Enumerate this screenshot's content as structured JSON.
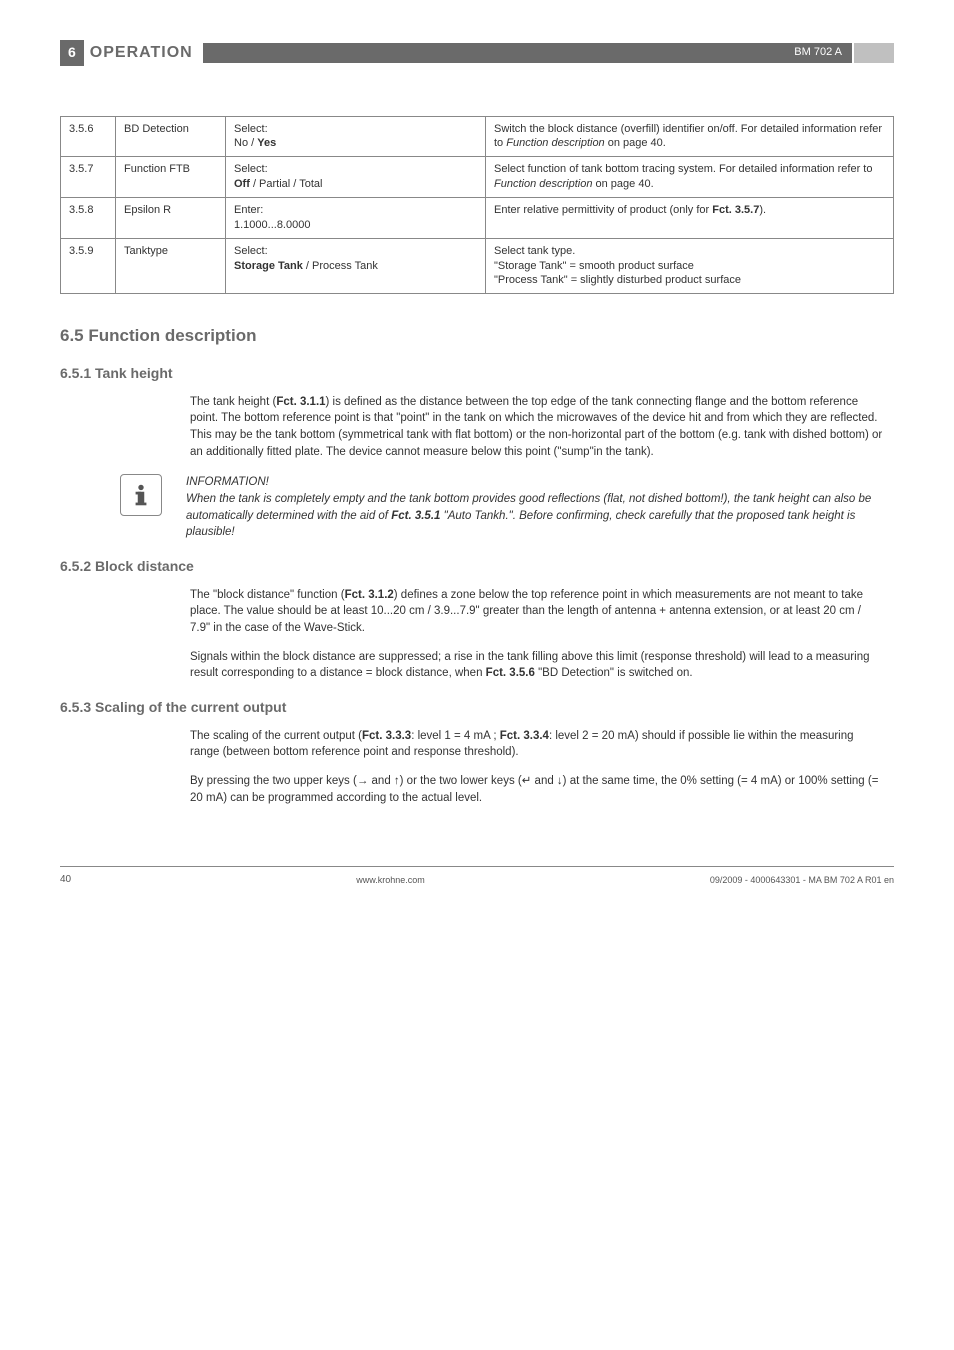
{
  "header": {
    "num": "6",
    "title": "OPERATION",
    "model": "BM 702 A"
  },
  "table": {
    "rows": [
      {
        "c1": "3.5.6",
        "c2": "BD Detection",
        "c3": "Select:<br>No / <b>Yes</b>",
        "c4": "Switch the block distance (overfill) identifier on/off. For detailed information refer to <span class=\"it\">Function description</span> on page 40."
      },
      {
        "c1": "3.5.7",
        "c2": "Function FTB",
        "c3": "Select:<br><b>Off</b> / Partial / Total",
        "c4": "Select function of tank bottom tracing system. For detailed information  refer to <span class=\"it\">Function description</span> on page 40."
      },
      {
        "c1": "3.5.8",
        "c2": "Epsilon R",
        "c3": "Enter:<br>1.1000...8.0000",
        "c4": "Enter relative permittivity of product (only for <b>Fct. 3.5.7</b>)."
      },
      {
        "c1": "3.5.9",
        "c2": "Tanktype",
        "c3": "Select:<br><b>Storage Tank</b> / Process Tank",
        "c4": "Select tank type.<br>\"Storage Tank\" = smooth product surface<br>\"Process Tank\" = slightly disturbed product surface"
      }
    ]
  },
  "sections": {
    "s65": "6.5  Function description",
    "s651": {
      "title": "6.5.1  Tank height",
      "body": "The tank height (<b>Fct. 3.1.1</b>) is defined as the distance between the top edge of the tank connecting flange and the bottom reference point. The bottom reference point is that \"point\" in the tank on which the microwaves of the device hit and from which they are reflected. This may be the tank bottom (symmetrical tank with flat bottom) or the non-horizontal part of the bottom (e.g. tank with dished bottom) or an additionally fitted plate. The device cannot measure below this point (\"sump\"in the tank)."
    },
    "info": {
      "head": "INFORMATION!",
      "body": "When the tank is completely empty and the tank bottom provides good reflections (flat, not dished bottom!), the tank height can also be automatically determined with the aid of <b>Fct. 3.5.1</b> \"Auto Tankh.\". Before confirming, check carefully that the proposed tank height is plausible!"
    },
    "s652": {
      "title": "6.5.2  Block distance",
      "p1": "The \"block distance\" function (<b>Fct. 3.1.2</b>) defines a zone below the top reference point in which measurements are not meant to take place. The value should be at least 10...20 cm / 3.9...7.9\" greater than the length of antenna + antenna extension, or at least 20 cm / 7.9\" in the case of the Wave-Stick.",
      "p2": "Signals within the block distance are suppressed; a rise in the tank filling above this limit (response threshold) will lead to a measuring result corresponding to a distance = block distance, when <b>Fct. 3.5.6</b> \"BD Detection\" is switched on."
    },
    "s653": {
      "title": "6.5.3  Scaling of the current output",
      "p1": "The scaling of the current output (<b>Fct. 3.3.3</b>: level 1 = 4 mA ; <b>Fct. 3.3.4</b>: level 2 = 20 mA) should if possible lie within the measuring range (between bottom reference point and response threshold).",
      "p2": "By pressing the two upper keys (→ and ↑) or the two lower keys (↵ and ↓) at the same time, the 0% setting (= 4 mA) or 100% setting (= 20 mA) can be programmed according to the actual level."
    }
  },
  "footer": {
    "page": "40",
    "site": "www.krohne.com",
    "doc": "09/2009 - 4000643301 - MA BM 702 A R01 en"
  }
}
